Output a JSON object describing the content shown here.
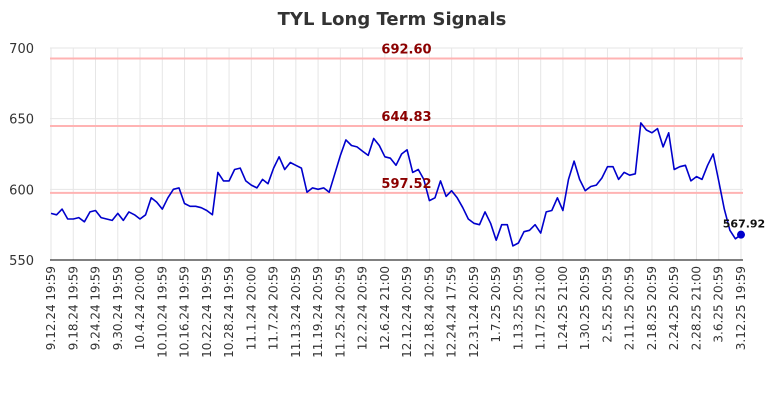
{
  "chart_data": {
    "type": "line",
    "title": "TYL Long Term Signals",
    "xlabel": "",
    "ylabel": "",
    "ylim": [
      550,
      700
    ],
    "yticks": [
      550,
      600,
      650,
      700
    ],
    "grid": true,
    "colors": {
      "line": "#0000cc",
      "ref_line": "#ffb3b3",
      "ref_label": "#8b0000",
      "grid": "#e6e6e6",
      "axis": "#000000"
    },
    "x_tick_labels": [
      "9.12.24 19:59",
      "9.18.24 19:59",
      "9.24.24 19:59",
      "9.30.24 19:59",
      "10.4.24 20:00",
      "10.10.24 19:59",
      "10.16.24 19:59",
      "10.22.24 19:59",
      "10.28.24 19:59",
      "11.1.24 20:00",
      "11.7.24 20:59",
      "11.13.24 20:59",
      "11.19.24 20:59",
      "11.25.24 20:59",
      "12.2.24 20:59",
      "12.6.24 21:00",
      "12.12.24 20:59",
      "12.18.24 20:59",
      "12.24.24 17:59",
      "12.31.24 20:59",
      "1.7.25 20:59",
      "1.13.25 20:59",
      "1.17.25 21:00",
      "1.24.25 21:00",
      "1.30.25 20:59",
      "2.5.25 20:59",
      "2.11.25 20:59",
      "2.18.25 20:59",
      "2.24.25 20:59",
      "2.28.25 21:00",
      "3.6.25 20:59",
      "3.12.25 19:59"
    ],
    "reference_lines": [
      {
        "value": 692.6,
        "label": "692.60"
      },
      {
        "value": 644.83,
        "label": "644.83"
      },
      {
        "value": 597.52,
        "label": "597.52"
      }
    ],
    "last_value_label": "567.92",
    "series": [
      {
        "values": [
          583,
          582,
          586,
          579,
          579,
          580,
          577,
          584,
          585,
          580,
          579,
          578,
          583,
          578,
          584,
          582,
          579,
          582,
          594,
          591,
          586,
          594,
          600,
          601,
          590,
          588,
          588,
          587,
          585,
          582,
          612,
          606,
          606,
          614,
          615,
          606,
          603,
          601,
          607,
          604,
          615,
          623,
          614,
          619,
          617,
          615,
          598,
          601,
          600,
          601,
          598,
          611,
          624,
          635,
          631,
          630,
          627,
          624,
          636,
          631,
          623,
          622,
          617,
          625,
          628,
          612,
          614,
          607,
          592,
          594,
          606,
          595,
          599,
          594,
          587,
          579,
          576,
          575,
          584,
          576,
          564,
          575,
          575,
          560,
          562,
          570,
          571,
          575,
          569,
          584,
          585,
          594,
          585,
          607,
          620,
          607,
          599,
          602,
          603,
          608,
          616,
          616,
          607,
          612,
          610,
          611,
          647,
          642,
          640,
          643,
          630,
          640,
          614,
          616,
          617,
          606,
          609,
          607,
          617,
          625,
          606,
          586,
          571,
          565,
          567.92
        ]
      }
    ]
  }
}
